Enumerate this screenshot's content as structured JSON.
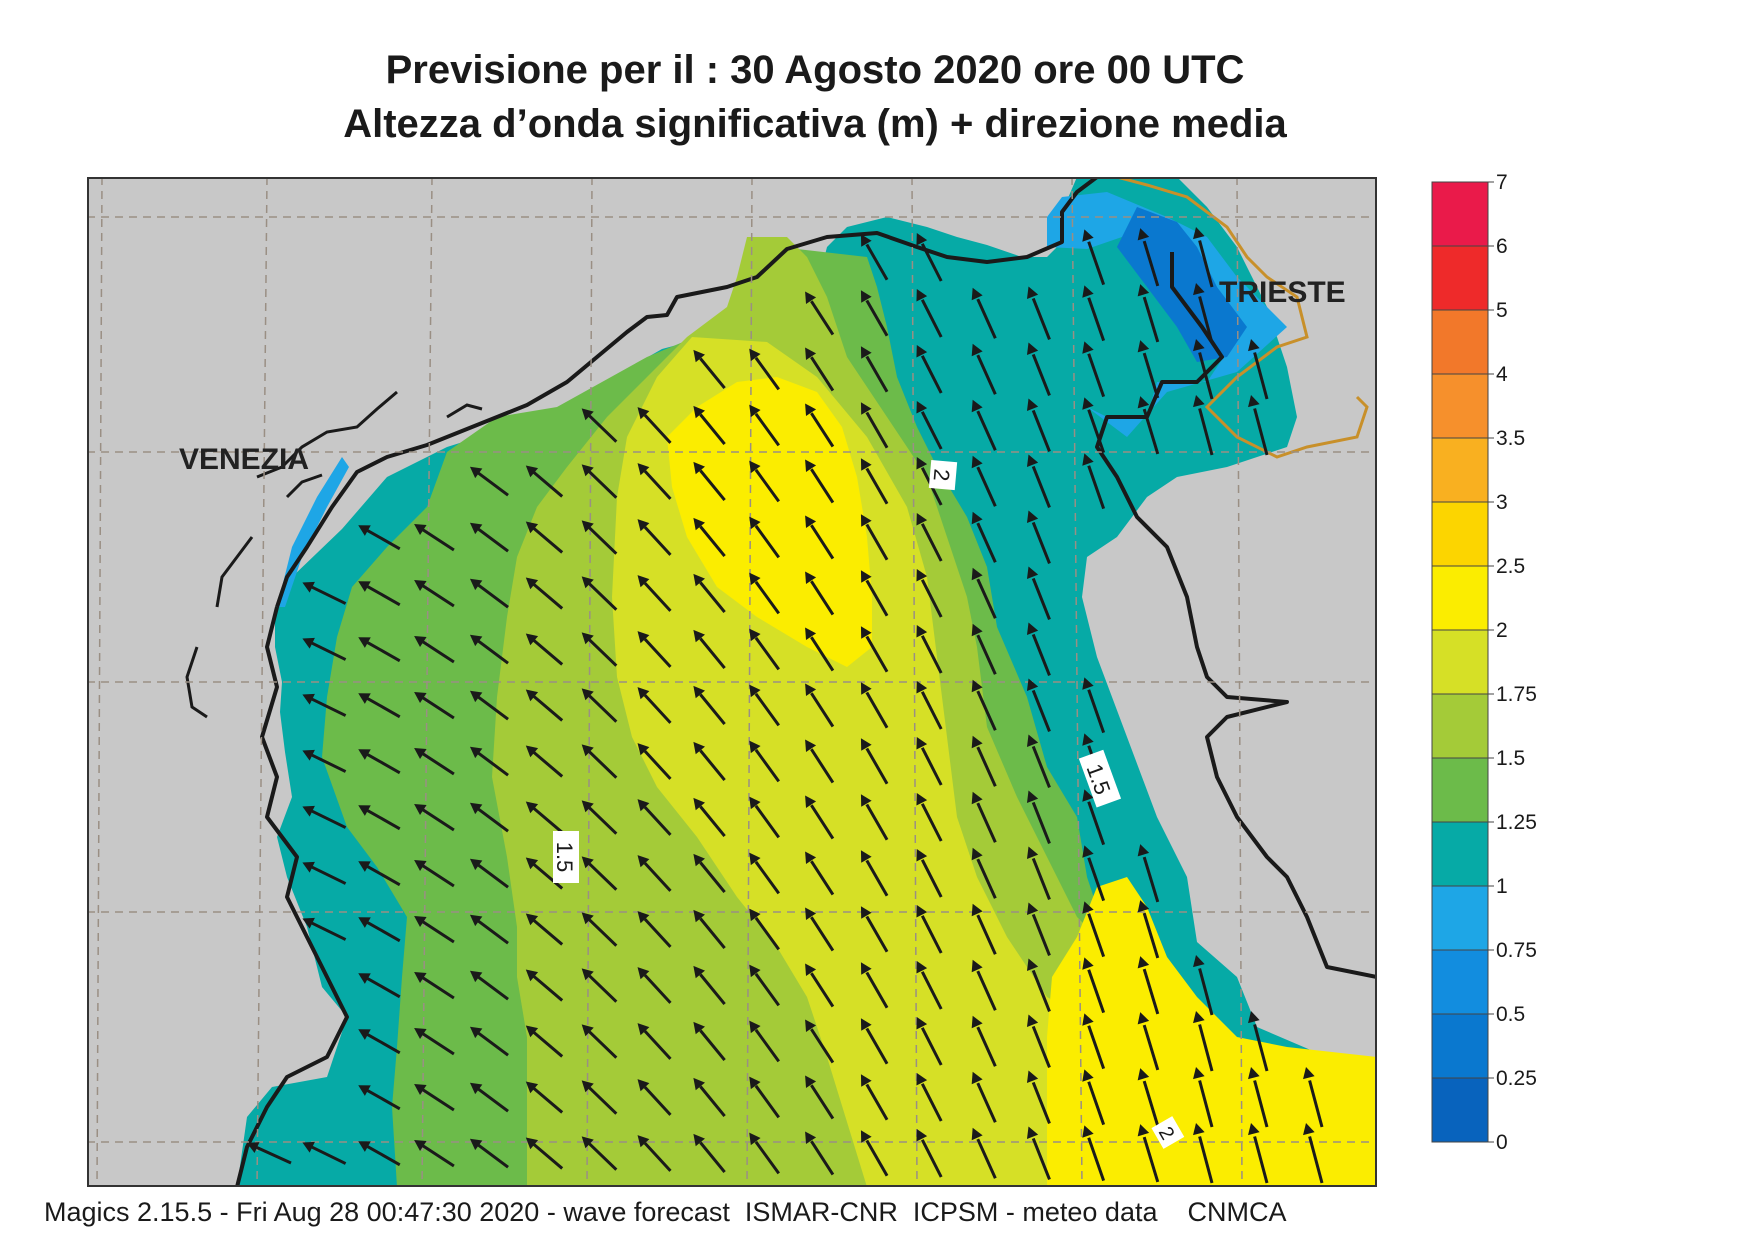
{
  "title": {
    "line1": "Previsione per il  :  30   Agosto  2020   ore 00 UTC",
    "line2": "Altezza d’onda significativa (m) + direzione media"
  },
  "map": {
    "place_labels": [
      "VENEZIA",
      "TRIESTE"
    ],
    "contour_labels": [
      "2",
      "1.5",
      "1.5",
      "2"
    ],
    "land_color": "#c8c8c8",
    "coast_color": "#1a1a1a",
    "border_color": "#c8902a",
    "arrow_color": "#1a1a1a",
    "arrow_direction": "toward north-west"
  },
  "legend": {
    "unit": "m",
    "ticks": [
      "0",
      "0.25",
      "0.5",
      "0.75",
      "1",
      "1.25",
      "1.5",
      "1.75",
      "2",
      "2.5",
      "3",
      "3.5",
      "4",
      "5",
      "6",
      "7"
    ],
    "colors": [
      "#0863bd",
      "#0a78cf",
      "#128ddf",
      "#1ea6e6",
      "#06aaa6",
      "#6cbb4a",
      "#a4cb38",
      "#d6e026",
      "#fbed00",
      "#fcd500",
      "#f9b020",
      "#f6902c",
      "#f2782a",
      "#ee2a2a",
      "#ea1a4a"
    ]
  },
  "footer": "Magics 2.15.5 - Fri Aug 28 00:47:30 2020 - wave forecast  ISMAR-CNR  ICPSM - meteo data    CNMCA"
}
